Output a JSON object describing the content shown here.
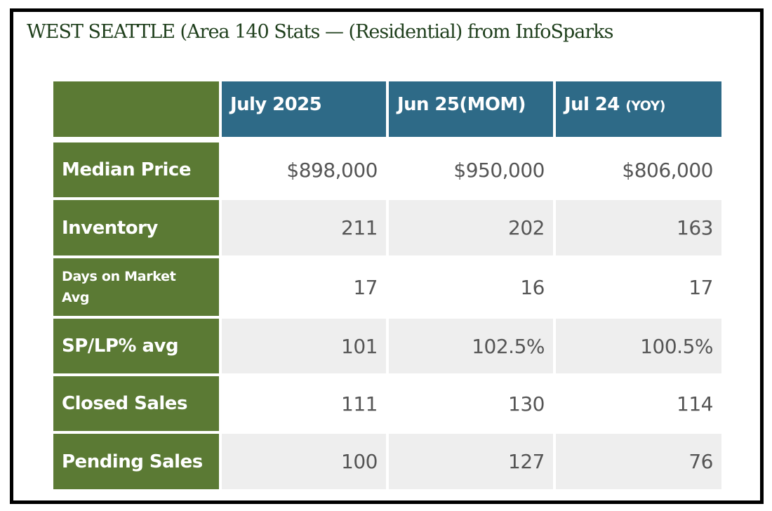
{
  "title": "WEST SEATTLE  (Area 140 Stats — (Residential) from InfoSparks",
  "colors": {
    "label_bg": "#5b7a34",
    "header_bg": "#2e6a87",
    "title_text": "#1f3f1c",
    "alt_row": "#eeeeee"
  },
  "table": {
    "columns": [
      {
        "label": "July 2025",
        "suffix": ""
      },
      {
        "label": "Jun 25(MOM)",
        "suffix": ""
      },
      {
        "label": "Jul 24 ",
        "suffix": "(YOY)"
      }
    ],
    "rows": [
      {
        "label": "Median Price",
        "values": [
          "$898,000",
          "$950,000",
          "$806,000"
        ]
      },
      {
        "label": "Inventory",
        "values": [
          "211",
          "202",
          "163"
        ]
      },
      {
        "label": "Days on Market Avg",
        "values": [
          "17",
          "16",
          "17"
        ]
      },
      {
        "label": "SP/LP% avg",
        "values": [
          "101",
          "102.5%",
          "100.5%"
        ]
      },
      {
        "label": "Closed Sales",
        "values": [
          "111",
          "130",
          "114"
        ]
      },
      {
        "label": "Pending Sales",
        "values": [
          "100",
          "127",
          "76"
        ]
      }
    ]
  }
}
